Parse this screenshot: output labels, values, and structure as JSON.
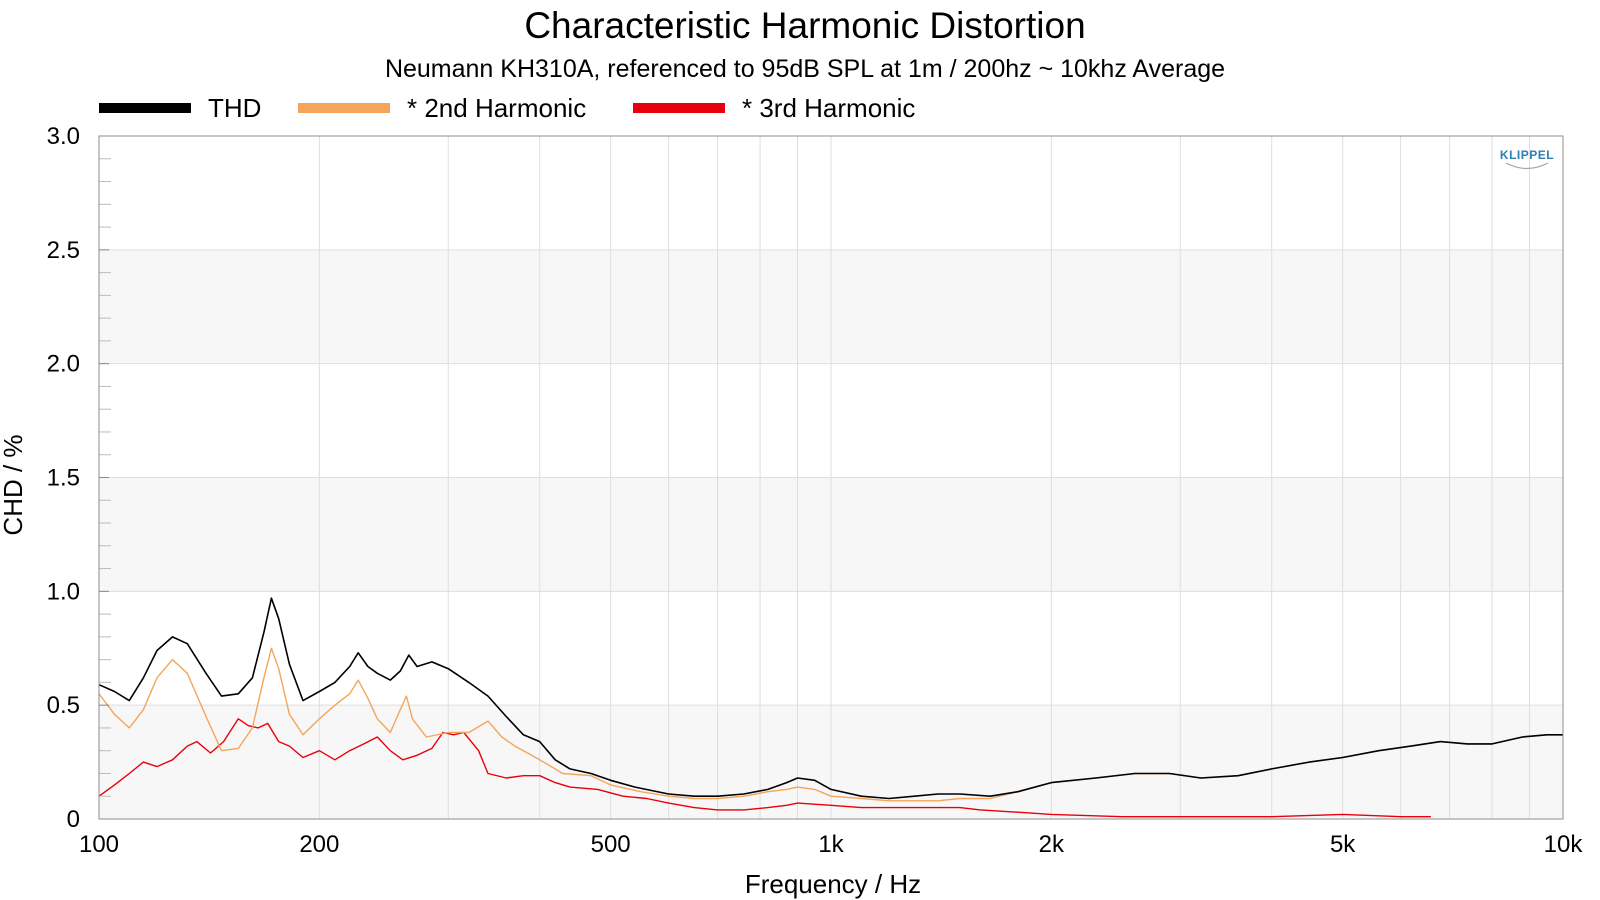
{
  "chart_data": {
    "type": "line",
    "title": "Characteristic Harmonic Distortion",
    "subtitle": "Neumann KH310A, referenced to 95dB SPL at 1m / 200hz ~ 10khz Average",
    "xlabel": "Frequency / Hz",
    "ylabel": "CHD / %",
    "x_scale": "log",
    "xlim": [
      100,
      10000
    ],
    "ylim": [
      0,
      3.0
    ],
    "x_ticks": [
      {
        "value": 100,
        "label": "100"
      },
      {
        "value": 200,
        "label": "200"
      },
      {
        "value": 500,
        "label": "500"
      },
      {
        "value": 1000,
        "label": "1k"
      },
      {
        "value": 2000,
        "label": "2k"
      },
      {
        "value": 5000,
        "label": "5k"
      },
      {
        "value": 10000,
        "label": "10k"
      }
    ],
    "y_ticks": [
      {
        "value": 0,
        "label": "0"
      },
      {
        "value": 0.5,
        "label": "0.5"
      },
      {
        "value": 1.0,
        "label": "1.0"
      },
      {
        "value": 1.5,
        "label": "1.5"
      },
      {
        "value": 2.0,
        "label": "2.0"
      },
      {
        "value": 2.5,
        "label": "2.5"
      },
      {
        "value": 3.0,
        "label": "3.0"
      }
    ],
    "grid": true,
    "legend_position": "top-left",
    "watermark": "KLIPPEL",
    "series": [
      {
        "name": "THD",
        "color": "#000000",
        "points": [
          [
            100,
            0.59
          ],
          [
            105,
            0.56
          ],
          [
            110,
            0.52
          ],
          [
            115,
            0.62
          ],
          [
            120,
            0.74
          ],
          [
            126,
            0.8
          ],
          [
            132,
            0.77
          ],
          [
            140,
            0.64
          ],
          [
            147,
            0.54
          ],
          [
            155,
            0.55
          ],
          [
            162,
            0.62
          ],
          [
            168,
            0.82
          ],
          [
            172,
            0.97
          ],
          [
            176,
            0.88
          ],
          [
            182,
            0.68
          ],
          [
            190,
            0.52
          ],
          [
            200,
            0.56
          ],
          [
            210,
            0.6
          ],
          [
            220,
            0.67
          ],
          [
            226,
            0.73
          ],
          [
            233,
            0.67
          ],
          [
            240,
            0.64
          ],
          [
            250,
            0.61
          ],
          [
            258,
            0.65
          ],
          [
            265,
            0.72
          ],
          [
            272,
            0.67
          ],
          [
            285,
            0.69
          ],
          [
            300,
            0.66
          ],
          [
            320,
            0.6
          ],
          [
            340,
            0.54
          ],
          [
            360,
            0.45
          ],
          [
            380,
            0.37
          ],
          [
            400,
            0.34
          ],
          [
            420,
            0.26
          ],
          [
            440,
            0.22
          ],
          [
            470,
            0.2
          ],
          [
            500,
            0.17
          ],
          [
            540,
            0.14
          ],
          [
            600,
            0.11
          ],
          [
            650,
            0.1
          ],
          [
            700,
            0.1
          ],
          [
            760,
            0.11
          ],
          [
            820,
            0.13
          ],
          [
            870,
            0.16
          ],
          [
            900,
            0.18
          ],
          [
            950,
            0.17
          ],
          [
            1000,
            0.13
          ],
          [
            1100,
            0.1
          ],
          [
            1200,
            0.09
          ],
          [
            1300,
            0.1
          ],
          [
            1400,
            0.11
          ],
          [
            1500,
            0.11
          ],
          [
            1650,
            0.1
          ],
          [
            1800,
            0.12
          ],
          [
            2000,
            0.16
          ],
          [
            2300,
            0.18
          ],
          [
            2600,
            0.2
          ],
          [
            2900,
            0.2
          ],
          [
            3200,
            0.18
          ],
          [
            3600,
            0.19
          ],
          [
            4000,
            0.22
          ],
          [
            4500,
            0.25
          ],
          [
            5000,
            0.27
          ],
          [
            5600,
            0.3
          ],
          [
            6200,
            0.32
          ],
          [
            6800,
            0.34
          ],
          [
            7400,
            0.33
          ],
          [
            8000,
            0.33
          ],
          [
            8800,
            0.36
          ],
          [
            9500,
            0.37
          ],
          [
            10000,
            0.37
          ]
        ]
      },
      {
        "name": "* 2nd Harmonic",
        "color": "#f4a55a",
        "points": [
          [
            100,
            0.55
          ],
          [
            105,
            0.46
          ],
          [
            110,
            0.4
          ],
          [
            115,
            0.48
          ],
          [
            120,
            0.62
          ],
          [
            126,
            0.7
          ],
          [
            132,
            0.64
          ],
          [
            140,
            0.45
          ],
          [
            147,
            0.3
          ],
          [
            155,
            0.31
          ],
          [
            162,
            0.4
          ],
          [
            168,
            0.62
          ],
          [
            172,
            0.75
          ],
          [
            176,
            0.66
          ],
          [
            182,
            0.46
          ],
          [
            190,
            0.37
          ],
          [
            200,
            0.44
          ],
          [
            210,
            0.5
          ],
          [
            220,
            0.55
          ],
          [
            226,
            0.61
          ],
          [
            233,
            0.53
          ],
          [
            240,
            0.44
          ],
          [
            250,
            0.38
          ],
          [
            258,
            0.48
          ],
          [
            263,
            0.54
          ],
          [
            268,
            0.44
          ],
          [
            280,
            0.36
          ],
          [
            300,
            0.38
          ],
          [
            320,
            0.38
          ],
          [
            340,
            0.43
          ],
          [
            355,
            0.36
          ],
          [
            370,
            0.32
          ],
          [
            390,
            0.28
          ],
          [
            410,
            0.24
          ],
          [
            430,
            0.2
          ],
          [
            470,
            0.19
          ],
          [
            500,
            0.15
          ],
          [
            550,
            0.12
          ],
          [
            600,
            0.1
          ],
          [
            650,
            0.09
          ],
          [
            700,
            0.09
          ],
          [
            760,
            0.1
          ],
          [
            820,
            0.12
          ],
          [
            870,
            0.13
          ],
          [
            900,
            0.14
          ],
          [
            950,
            0.13
          ],
          [
            1000,
            0.1
          ],
          [
            1100,
            0.09
          ],
          [
            1200,
            0.08
          ],
          [
            1300,
            0.08
          ],
          [
            1400,
            0.08
          ],
          [
            1500,
            0.09
          ],
          [
            1650,
            0.09
          ],
          [
            1800,
            0.12
          ],
          [
            2000,
            0.16
          ],
          [
            2300,
            0.18
          ],
          [
            2600,
            0.2
          ],
          [
            2900,
            0.2
          ],
          [
            3200,
            0.18
          ],
          [
            3600,
            0.19
          ],
          [
            4000,
            0.22
          ],
          [
            4500,
            0.25
          ],
          [
            5000,
            0.27
          ],
          [
            5600,
            0.3
          ],
          [
            6200,
            0.32
          ],
          [
            6800,
            0.34
          ],
          [
            7400,
            0.33
          ],
          [
            8000,
            0.33
          ],
          [
            8800,
            0.36
          ],
          [
            9500,
            0.37
          ],
          [
            10000,
            0.37
          ]
        ]
      },
      {
        "name": "* 3rd Harmonic",
        "color": "#e8000b",
        "points": [
          [
            100,
            0.1
          ],
          [
            105,
            0.15
          ],
          [
            110,
            0.2
          ],
          [
            115,
            0.25
          ],
          [
            120,
            0.23
          ],
          [
            126,
            0.26
          ],
          [
            132,
            0.32
          ],
          [
            136,
            0.34
          ],
          [
            142,
            0.29
          ],
          [
            148,
            0.34
          ],
          [
            155,
            0.44
          ],
          [
            160,
            0.41
          ],
          [
            165,
            0.4
          ],
          [
            170,
            0.42
          ],
          [
            176,
            0.34
          ],
          [
            182,
            0.32
          ],
          [
            190,
            0.27
          ],
          [
            200,
            0.3
          ],
          [
            210,
            0.26
          ],
          [
            220,
            0.3
          ],
          [
            230,
            0.33
          ],
          [
            240,
            0.36
          ],
          [
            250,
            0.3
          ],
          [
            260,
            0.26
          ],
          [
            272,
            0.28
          ],
          [
            285,
            0.31
          ],
          [
            295,
            0.38
          ],
          [
            305,
            0.37
          ],
          [
            315,
            0.38
          ],
          [
            330,
            0.3
          ],
          [
            340,
            0.2
          ],
          [
            360,
            0.18
          ],
          [
            380,
            0.19
          ],
          [
            400,
            0.19
          ],
          [
            420,
            0.16
          ],
          [
            440,
            0.14
          ],
          [
            480,
            0.13
          ],
          [
            520,
            0.1
          ],
          [
            560,
            0.09
          ],
          [
            600,
            0.07
          ],
          [
            650,
            0.05
          ],
          [
            700,
            0.04
          ],
          [
            760,
            0.04
          ],
          [
            820,
            0.05
          ],
          [
            870,
            0.06
          ],
          [
            900,
            0.07
          ],
          [
            1000,
            0.06
          ],
          [
            1100,
            0.05
          ],
          [
            1200,
            0.05
          ],
          [
            1300,
            0.05
          ],
          [
            1400,
            0.05
          ],
          [
            1500,
            0.05
          ],
          [
            1600,
            0.04
          ],
          [
            1800,
            0.03
          ],
          [
            2000,
            0.02
          ],
          [
            2500,
            0.01
          ],
          [
            3000,
            0.01
          ],
          [
            4000,
            0.01
          ],
          [
            5000,
            0.02
          ],
          [
            6000,
            0.01
          ],
          [
            6600,
            0.01
          ]
        ]
      }
    ]
  }
}
